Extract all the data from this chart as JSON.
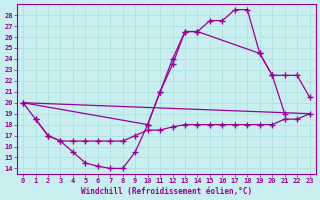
{
  "xlabel": "Windchill (Refroidissement éolien,°C)",
  "bg_color": "#c8eef0",
  "line_color": "#990099",
  "grid_color": "#aadddd",
  "xlim": [
    -0.5,
    23.5
  ],
  "ylim": [
    13.5,
    29.0
  ],
  "yticks": [
    14,
    15,
    16,
    17,
    18,
    19,
    20,
    21,
    22,
    23,
    24,
    25,
    26,
    27,
    28
  ],
  "xticks": [
    0,
    1,
    2,
    3,
    4,
    5,
    6,
    7,
    8,
    9,
    10,
    11,
    12,
    13,
    14,
    15,
    16,
    17,
    18,
    19,
    20,
    21,
    22,
    23
  ],
  "line1_x": [
    0,
    1,
    2,
    3,
    4,
    5,
    6,
    7,
    8,
    9,
    10,
    11,
    12,
    13,
    14,
    15,
    16,
    17,
    18,
    19,
    20,
    21
  ],
  "line1_y": [
    20.0,
    18.5,
    17.0,
    16.5,
    15.5,
    14.5,
    14.2,
    14.0,
    14.0,
    15.5,
    18.0,
    21.0,
    23.5,
    26.5,
    26.5,
    27.5,
    27.5,
    28.5,
    28.5,
    24.5,
    22.5,
    19.0
  ],
  "line2_x": [
    1,
    2,
    3,
    4,
    5,
    6,
    7,
    8,
    9,
    10,
    11,
    12,
    13,
    14,
    15,
    16,
    17,
    18,
    19,
    20,
    21,
    22,
    23
  ],
  "line2_y": [
    18.5,
    17.0,
    16.5,
    16.5,
    16.5,
    16.5,
    16.5,
    16.5,
    17.0,
    17.5,
    17.5,
    17.8,
    18.0,
    18.0,
    18.0,
    18.0,
    18.0,
    18.0,
    18.0,
    18.0,
    18.5,
    18.5,
    19.0
  ],
  "line3_x": [
    0,
    10,
    11,
    12,
    13,
    14,
    19,
    20,
    21,
    22,
    23
  ],
  "line3_y": [
    20.0,
    18.0,
    21.0,
    24.0,
    26.5,
    26.5,
    24.5,
    22.5,
    22.5,
    22.5,
    20.5
  ],
  "line4_x": [
    0,
    23
  ],
  "line4_y": [
    20.0,
    19.0
  ]
}
